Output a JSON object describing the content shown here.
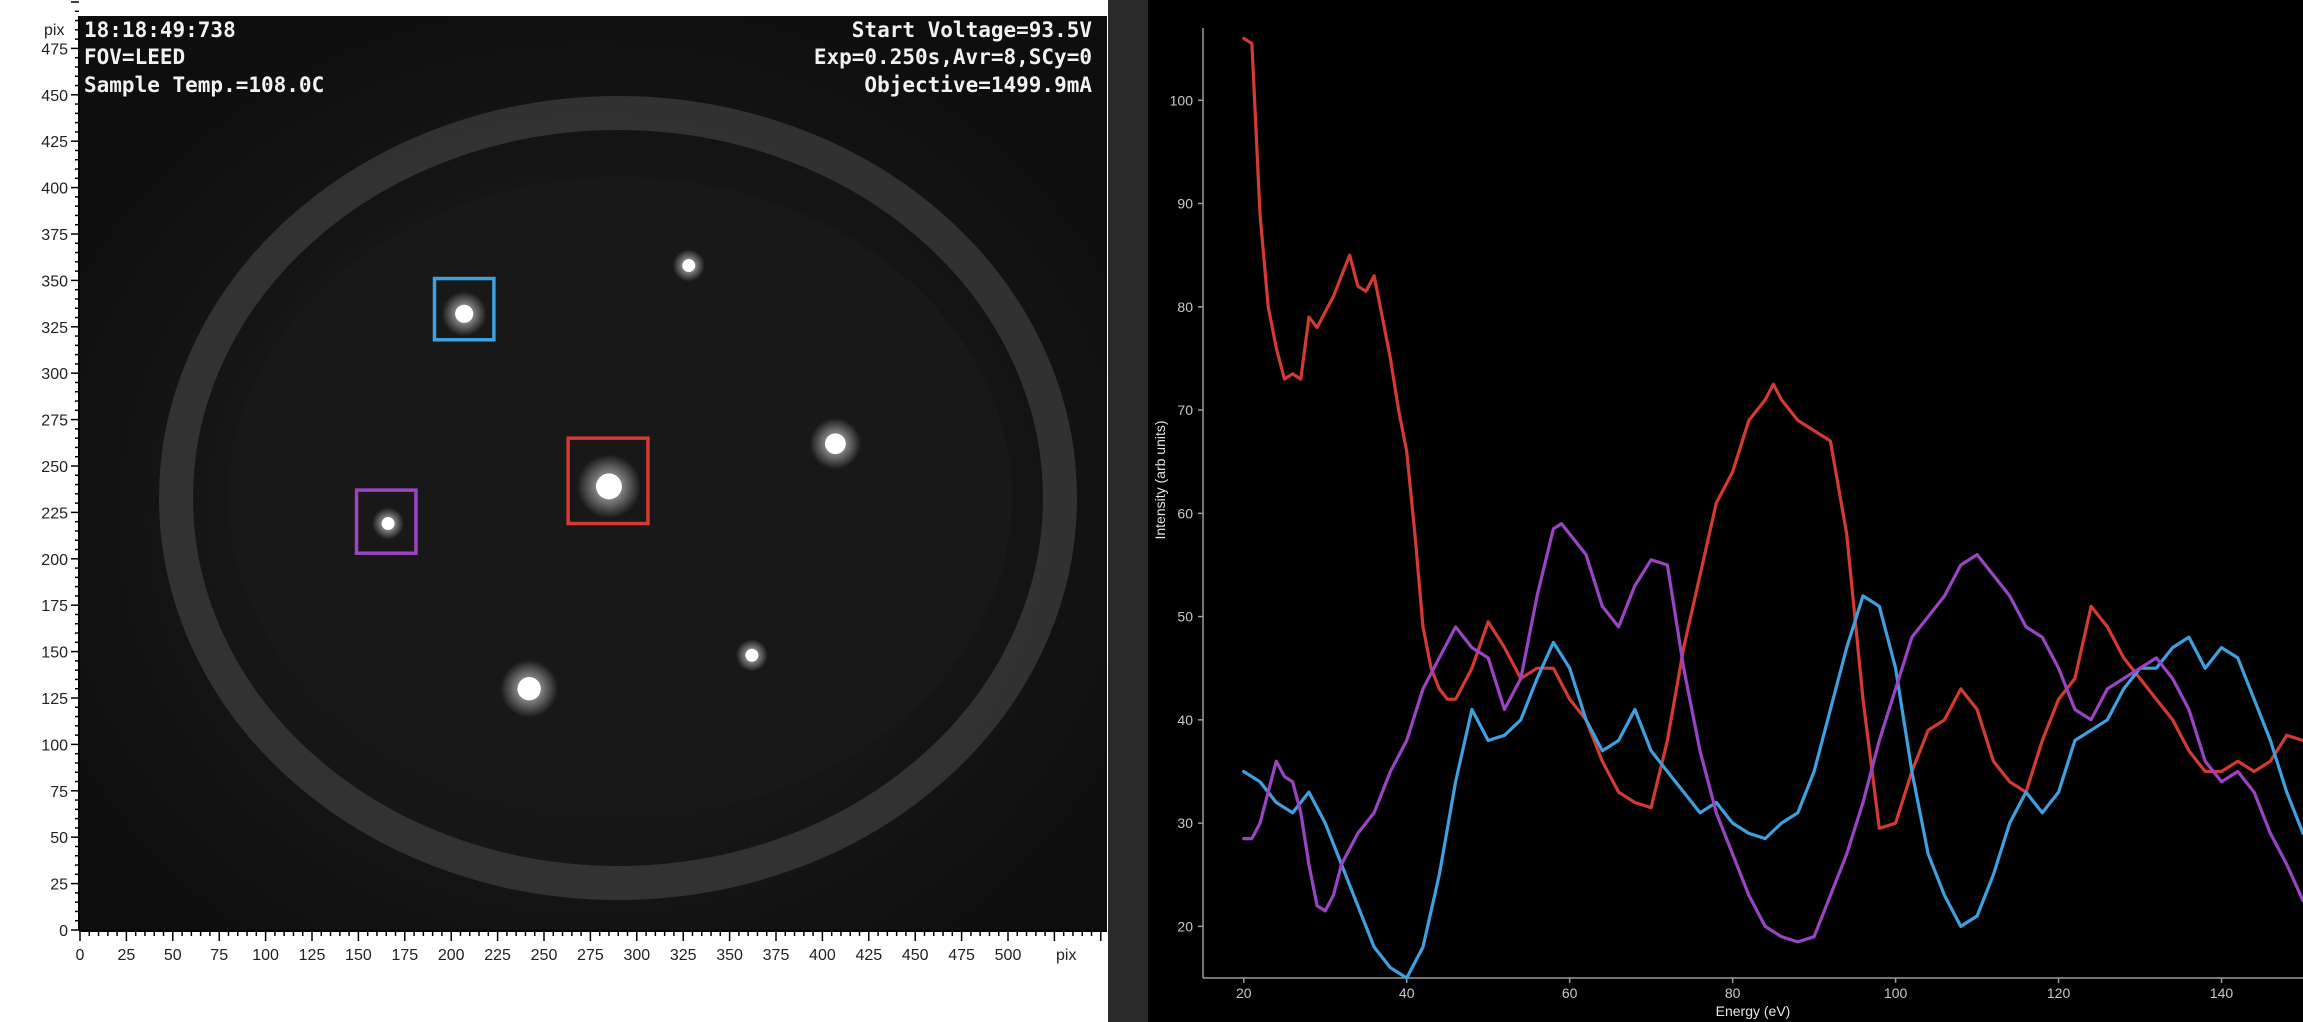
{
  "leed": {
    "overlay": {
      "timestamp": "18:18:49:738",
      "fov": "FOV=LEED",
      "sample_temp": "Sample Temp.=108.0C",
      "start_voltage": "Start Voltage=93.5V",
      "exposure": "Exp=0.250s,Avr=8,SCy=0",
      "objective": "Objective=1499.9mA"
    },
    "axis_unit": "pix",
    "axis_max": 500,
    "spots": [
      {
        "x": 207,
        "y": 332,
        "r": 7
      },
      {
        "x": 285,
        "y": 239,
        "r": 10
      },
      {
        "x": 166,
        "y": 219,
        "r": 5
      },
      {
        "x": 328,
        "y": 358,
        "r": 5
      },
      {
        "x": 407,
        "y": 262,
        "r": 8
      },
      {
        "x": 242,
        "y": 130,
        "r": 9
      },
      {
        "x": 362,
        "y": 148,
        "r": 5
      }
    ],
    "rois": [
      {
        "name": "blue",
        "color": "#3fa0e0",
        "x0": 191,
        "y0": 318,
        "x1": 223,
        "y1": 351
      },
      {
        "name": "red",
        "color": "#d23a32",
        "x0": 263,
        "y0": 219,
        "x1": 306,
        "y1": 265
      },
      {
        "name": "purple",
        "color": "#9a44c4",
        "x0": 149,
        "y0": 203,
        "x1": 181,
        "y1": 237
      }
    ]
  },
  "chart_data": {
    "type": "line",
    "title": "",
    "xlabel": "Energy (eV)",
    "ylabel": "Intensity (arb units)",
    "xlim": [
      15,
      150
    ],
    "ylim": [
      15,
      107
    ],
    "x_ticks": [
      20,
      40,
      60,
      80,
      100,
      120,
      140
    ],
    "y_ticks": [
      20,
      30,
      40,
      50,
      60,
      70,
      80,
      90,
      100
    ],
    "grid": false,
    "series": [
      {
        "color": "#d23a32",
        "x": [
          20,
          21,
          22,
          23,
          24,
          25,
          26,
          27,
          28,
          29,
          30,
          31,
          32,
          33,
          34,
          35,
          36,
          37,
          38,
          39,
          40,
          41,
          42,
          43,
          44,
          45,
          46,
          48,
          50,
          52,
          54,
          56,
          58,
          60,
          62,
          64,
          66,
          68,
          70,
          72,
          74,
          76,
          78,
          80,
          82,
          84,
          85,
          86,
          88,
          90,
          92,
          94,
          96,
          98,
          100,
          102,
          104,
          106,
          108,
          110,
          112,
          114,
          116,
          118,
          120,
          122,
          124,
          126,
          128,
          130,
          132,
          134,
          136,
          138,
          140,
          142,
          144,
          146,
          148,
          150
        ],
        "y": [
          106,
          105.5,
          89,
          80,
          76,
          73,
          73.5,
          73,
          79,
          78,
          79.5,
          81,
          83,
          85,
          82,
          81.5,
          83,
          79,
          75,
          70,
          66,
          58,
          49,
          45,
          43,
          42,
          42,
          45,
          49.5,
          47,
          44,
          45,
          45,
          42,
          40,
          36,
          33,
          32,
          31.5,
          38,
          47,
          54,
          61,
          64,
          69,
          71,
          72.5,
          71,
          69,
          68,
          67,
          58,
          42,
          29.5,
          30,
          35,
          39,
          40,
          43,
          41,
          36,
          34,
          33,
          38,
          42,
          44,
          51,
          49,
          46,
          44,
          42,
          40,
          37,
          35,
          35,
          36,
          35,
          36,
          38.5,
          38
        ]
      },
      {
        "color": "#3fa0e0",
        "x": [
          20,
          22,
          24,
          26,
          28,
          30,
          32,
          34,
          36,
          38,
          40,
          42,
          44,
          46,
          48,
          50,
          52,
          54,
          56,
          58,
          60,
          62,
          64,
          66,
          68,
          70,
          72,
          74,
          76,
          78,
          80,
          82,
          84,
          86,
          88,
          90,
          92,
          94,
          96,
          98,
          100,
          102,
          104,
          106,
          108,
          110,
          112,
          114,
          116,
          118,
          120,
          122,
          124,
          126,
          128,
          130,
          132,
          134,
          136,
          138,
          140,
          142,
          144,
          146,
          148,
          150
        ],
        "y": [
          35,
          34,
          32,
          31,
          33,
          30,
          26,
          22,
          18,
          16,
          15,
          18,
          25,
          34,
          41,
          38,
          38.5,
          40,
          44,
          47.5,
          45,
          40,
          37,
          38,
          41,
          37,
          35,
          33,
          31,
          32,
          30,
          29,
          28.5,
          30,
          31,
          35,
          41,
          47,
          52,
          51,
          45,
          35,
          27,
          23,
          20,
          21,
          25,
          30,
          33,
          31,
          33,
          38,
          39,
          40,
          43,
          45,
          45,
          47,
          48,
          45,
          47,
          46,
          42,
          38,
          33,
          29
        ]
      },
      {
        "color": "#9a44c4",
        "x": [
          20,
          21,
          22,
          23,
          24,
          25,
          26,
          27,
          28,
          29,
          30,
          31,
          32,
          34,
          36,
          38,
          40,
          42,
          44,
          46,
          48,
          50,
          52,
          54,
          56,
          58,
          59,
          60,
          62,
          64,
          66,
          68,
          70,
          72,
          74,
          76,
          78,
          80,
          82,
          84,
          86,
          88,
          90,
          92,
          94,
          96,
          98,
          100,
          102,
          104,
          106,
          108,
          110,
          112,
          114,
          116,
          118,
          120,
          122,
          124,
          126,
          128,
          130,
          132,
          134,
          136,
          138,
          140,
          142,
          144,
          146,
          148,
          150
        ],
        "y": [
          28.5,
          28.5,
          30,
          33,
          36,
          34.5,
          34,
          31,
          26,
          22,
          21.5,
          23,
          26,
          29,
          31,
          35,
          38,
          43,
          46,
          49,
          47,
          46,
          41,
          44,
          52,
          58.5,
          59,
          58,
          56,
          51,
          49,
          53,
          55.5,
          55,
          45,
          37,
          31,
          27,
          23,
          20,
          19,
          18.5,
          19,
          23,
          27,
          32,
          38,
          43,
          48,
          50,
          52,
          55,
          56,
          54,
          52,
          49,
          48,
          45,
          41,
          40,
          43,
          44,
          45,
          46,
          44,
          41,
          36,
          34,
          35,
          33,
          29,
          26,
          22.5
        ]
      }
    ]
  }
}
